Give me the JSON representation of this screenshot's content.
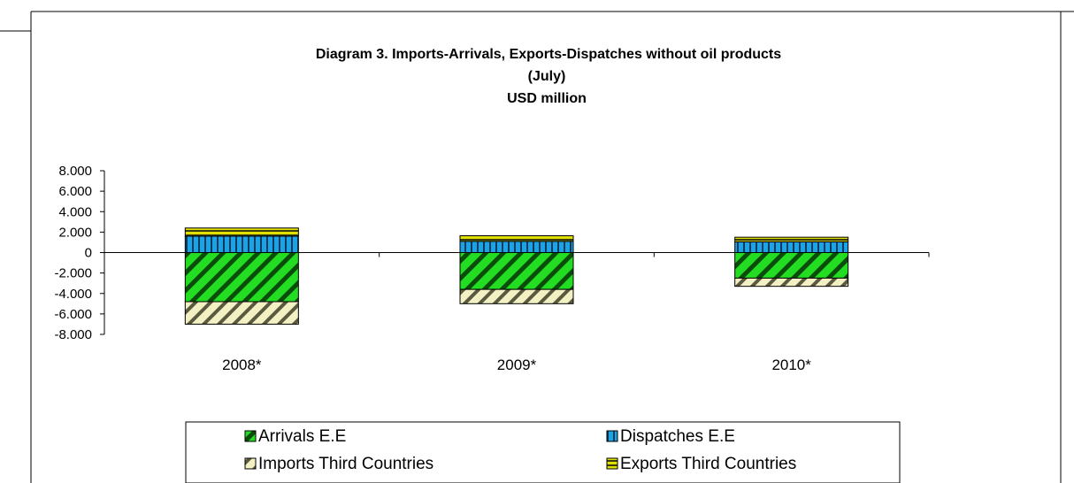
{
  "chart_data": {
    "type": "bar",
    "stacked": true,
    "title": "Diagram 3. Imports-Arrivals,  Exports-Dispatches without oil products",
    "subtitle": "(July)",
    "unit_line": "USD million",
    "categories": [
      "2008*",
      "2009*",
      "2010*"
    ],
    "yticks": [
      "8.000",
      "6.000",
      "4.000",
      "2.000",
      "0",
      "-2.000",
      "-4.000",
      "-6.000",
      "-8.000"
    ],
    "ylim": [
      -8000,
      8000
    ],
    "legend_position": "bottom",
    "series": [
      {
        "name": "Arrivals E.E",
        "values": [
          -4800,
          -3600,
          -2500
        ],
        "color": "#22dd22",
        "pattern": "diagonal-dark"
      },
      {
        "name": "Dispatches  E.E",
        "values": [
          1600,
          1100,
          1050
        ],
        "color": "#1ca3e6",
        "pattern": "vertical-dark"
      },
      {
        "name": "Imports Third Countries",
        "values": [
          -2200,
          -1400,
          -800
        ],
        "color": "#f3f0c4",
        "pattern": "diagonal-dark"
      },
      {
        "name": "Exports Third Countries",
        "values": [
          800,
          550,
          450
        ],
        "color": "#e0e000",
        "pattern": "horizontal-dark"
      }
    ]
  }
}
